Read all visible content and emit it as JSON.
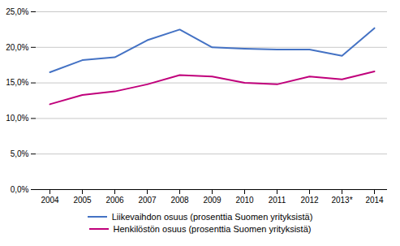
{
  "chart_data": {
    "type": "line",
    "categories": [
      "2004",
      "2005",
      "2006",
      "2007",
      "2008",
      "2009",
      "2010",
      "2011",
      "2012",
      "2013*",
      "2014"
    ],
    "series": [
      {
        "name": "Liikevaihdon osuus (prosenttia Suomen yrityksistä)",
        "color": "#4472C4",
        "values": [
          0.165,
          0.182,
          0.186,
          0.21,
          0.225,
          0.2,
          0.198,
          0.197,
          0.197,
          0.188,
          0.227
        ]
      },
      {
        "name": "Henkilöstön osuus (prosenttia Suomen yrityksistä)",
        "color": "#C0007B",
        "values": [
          0.12,
          0.133,
          0.138,
          0.148,
          0.161,
          0.159,
          0.15,
          0.148,
          0.159,
          0.155,
          0.166
        ]
      }
    ],
    "ylim": [
      0.0,
      0.25
    ],
    "yticks": [
      {
        "value": 0.0,
        "label": "0,0%"
      },
      {
        "value": 0.05,
        "label": "5,0%"
      },
      {
        "value": 0.1,
        "label": "10,0%"
      },
      {
        "value": 0.15,
        "label": "15,0%"
      },
      {
        "value": 0.2,
        "label": "20,0%"
      },
      {
        "value": 0.25,
        "label": "25,0%"
      }
    ],
    "grid": true,
    "legend": "bottom"
  }
}
